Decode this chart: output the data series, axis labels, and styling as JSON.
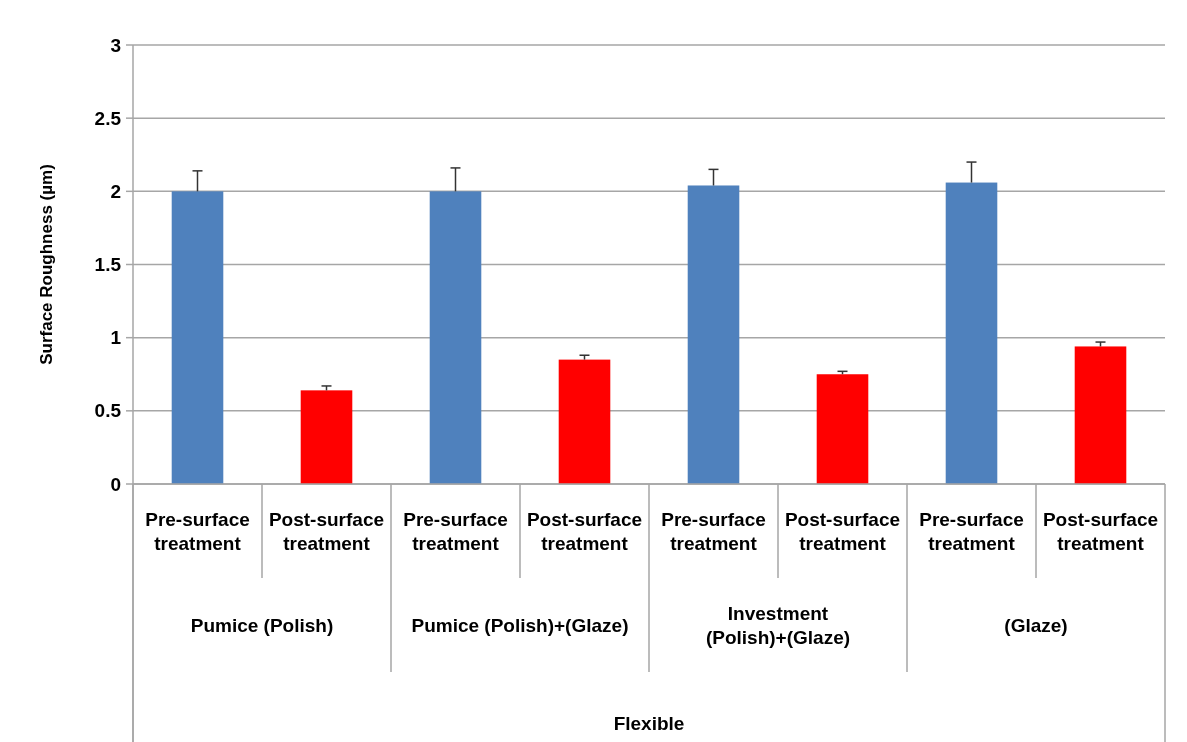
{
  "chart_data": {
    "type": "bar",
    "ylabel": "Surface Roughness (µm)",
    "categories": [
      "Pre-surface treatment",
      "Post-surface treatment",
      "Pre-surface treatment",
      "Post-surface treatment",
      "Pre-surface treatment",
      "Post-surface treatment",
      "Pre-surface treatment",
      "Post-surface treatment"
    ],
    "values": [
      2.0,
      0.64,
      2.0,
      0.85,
      2.04,
      0.75,
      2.06,
      0.94
    ],
    "errors": [
      0.14,
      0.03,
      0.16,
      0.03,
      0.11,
      0.02,
      0.14,
      0.03
    ],
    "colors": [
      "#4f81bd",
      "#ff0000",
      "#4f81bd",
      "#ff0000",
      "#4f81bd",
      "#ff0000",
      "#4f81bd",
      "#ff0000"
    ],
    "ylim": [
      0,
      3
    ],
    "yticks": [
      0,
      0.5,
      1,
      1.5,
      2,
      2.5,
      3
    ],
    "grid": "y",
    "annotations": [
      "Pumice (Polish)",
      "Pumice (Polish)+(Glaze)",
      "Investment (Polish)+(Glaze)",
      "(Glaze)",
      "Flexible"
    ]
  }
}
